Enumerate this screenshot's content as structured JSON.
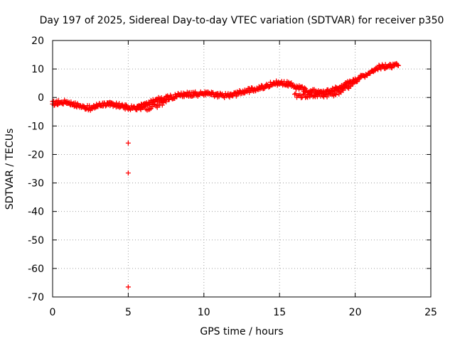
{
  "chart_data": {
    "type": "scatter",
    "title": "Day 197 of 2025, Sidereal Day-to-day VTEC variation (SDTVAR) for receiver p350",
    "xlabel": "GPS time / hours",
    "ylabel": "SDTVAR / TECUs",
    "xlim": [
      0,
      25
    ],
    "ylim": [
      -70,
      20
    ],
    "x_ticks": [
      0,
      5,
      10,
      15,
      20,
      25
    ],
    "y_ticks": [
      -70,
      -60,
      -50,
      -40,
      -30,
      -20,
      -10,
      0,
      10,
      20
    ],
    "grid": true,
    "marker": "+",
    "series_color": "#ff0000",
    "series": [
      {
        "name": "SDTVAR",
        "trace": [
          [
            0.0,
            -2.0
          ],
          [
            0.5,
            -1.8
          ],
          [
            1.0,
            -1.5
          ],
          [
            1.5,
            -2.5
          ],
          [
            2.0,
            -3.2
          ],
          [
            2.5,
            -3.8
          ],
          [
            3.0,
            -3.0
          ],
          [
            3.5,
            -2.2
          ],
          [
            4.0,
            -2.5
          ],
          [
            4.5,
            -3.0
          ],
          [
            5.0,
            -3.5
          ],
          [
            5.5,
            -3.8
          ],
          [
            6.0,
            -2.8
          ],
          [
            6.5,
            -1.8
          ],
          [
            7.0,
            -0.8
          ],
          [
            7.5,
            -0.2
          ],
          [
            8.0,
            0.3
          ],
          [
            8.5,
            0.8
          ],
          [
            9.0,
            1.2
          ],
          [
            9.5,
            1.2
          ],
          [
            10.0,
            1.5
          ],
          [
            10.5,
            1.2
          ],
          [
            11.0,
            0.8
          ],
          [
            11.5,
            0.7
          ],
          [
            12.0,
            1.0
          ],
          [
            12.5,
            2.0
          ],
          [
            13.0,
            2.5
          ],
          [
            13.5,
            3.0
          ],
          [
            14.0,
            3.8
          ],
          [
            14.5,
            4.8
          ],
          [
            15.0,
            5.2
          ],
          [
            15.5,
            4.8
          ],
          [
            16.0,
            4.0
          ],
          [
            16.5,
            3.0
          ],
          [
            17.0,
            2.2
          ],
          [
            17.5,
            1.8
          ],
          [
            18.0,
            1.8
          ],
          [
            18.5,
            2.5
          ],
          [
            19.0,
            3.5
          ],
          [
            19.5,
            5.0
          ],
          [
            20.0,
            6.0
          ],
          [
            20.5,
            7.5
          ],
          [
            21.0,
            9.0
          ],
          [
            21.5,
            10.5
          ],
          [
            22.0,
            11.0
          ],
          [
            22.5,
            11.0
          ],
          [
            22.85,
            11.2
          ]
        ],
        "lower_branch": [
          [
            5.5,
            -4.0
          ],
          [
            6.0,
            -3.8
          ],
          [
            6.5,
            -3.5
          ],
          [
            7.0,
            -2.5
          ],
          [
            7.5,
            -1.5
          ]
        ],
        "flat_segment": [
          [
            16.0,
            0.6
          ],
          [
            16.5,
            0.6
          ],
          [
            17.0,
            0.6
          ],
          [
            17.5,
            0.7
          ],
          [
            18.0,
            0.8
          ],
          [
            18.5,
            1.2
          ],
          [
            19.0,
            2.0
          ],
          [
            19.5,
            3.5
          ],
          [
            20.0,
            5.5
          ]
        ],
        "outliers": [
          [
            5.0,
            -16.0
          ],
          [
            5.0,
            -26.5
          ],
          [
            5.0,
            -66.5
          ]
        ]
      }
    ]
  }
}
